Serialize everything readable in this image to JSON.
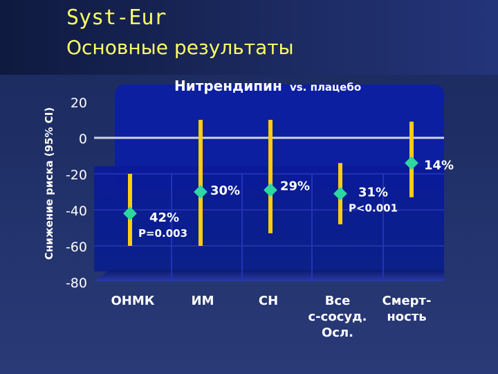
{
  "slide": {
    "title": "Syst-Eur",
    "subtitle": "Основные результаты"
  },
  "chart_data": {
    "type": "interval",
    "title_main": "Нитрендипин",
    "title_rest": "vs. плацебо",
    "ylabel": "Снижение риска (95% CI)",
    "ylim": [
      -80,
      20
    ],
    "yticks": [
      20,
      0,
      -20,
      -40,
      -60,
      -80
    ],
    "categories": [
      {
        "lines": [
          "ОНМК"
        ]
      },
      {
        "lines": [
          "ИМ"
        ]
      },
      {
        "lines": [
          "СН"
        ]
      },
      {
        "lines": [
          "Все",
          "с-сосуд.",
          "Осл."
        ]
      },
      {
        "lines": [
          "Смерт-",
          "ность"
        ]
      }
    ],
    "points": [
      {
        "estimate": -42,
        "low": -60,
        "high": -20,
        "label": "42%",
        "pvalue": "P=0.003"
      },
      {
        "estimate": -30,
        "low": -60,
        "high": 10,
        "label": "30%",
        "pvalue": ""
      },
      {
        "estimate": -29,
        "low": -53,
        "high": 10,
        "label": "29%",
        "pvalue": ""
      },
      {
        "estimate": -31,
        "low": -48,
        "high": -14,
        "label": "31%",
        "pvalue": "P<0.001"
      },
      {
        "estimate": -14,
        "low": -33,
        "high": 9,
        "label": "14%",
        "pvalue": ""
      }
    ],
    "colors": {
      "panel": "#0b1fa8",
      "bar": "#ffcc11",
      "marker": "#2ed6a0",
      "zero_line": "#cfd3e6",
      "text": "#ffffff",
      "title_yellow": "#ffff66"
    }
  }
}
